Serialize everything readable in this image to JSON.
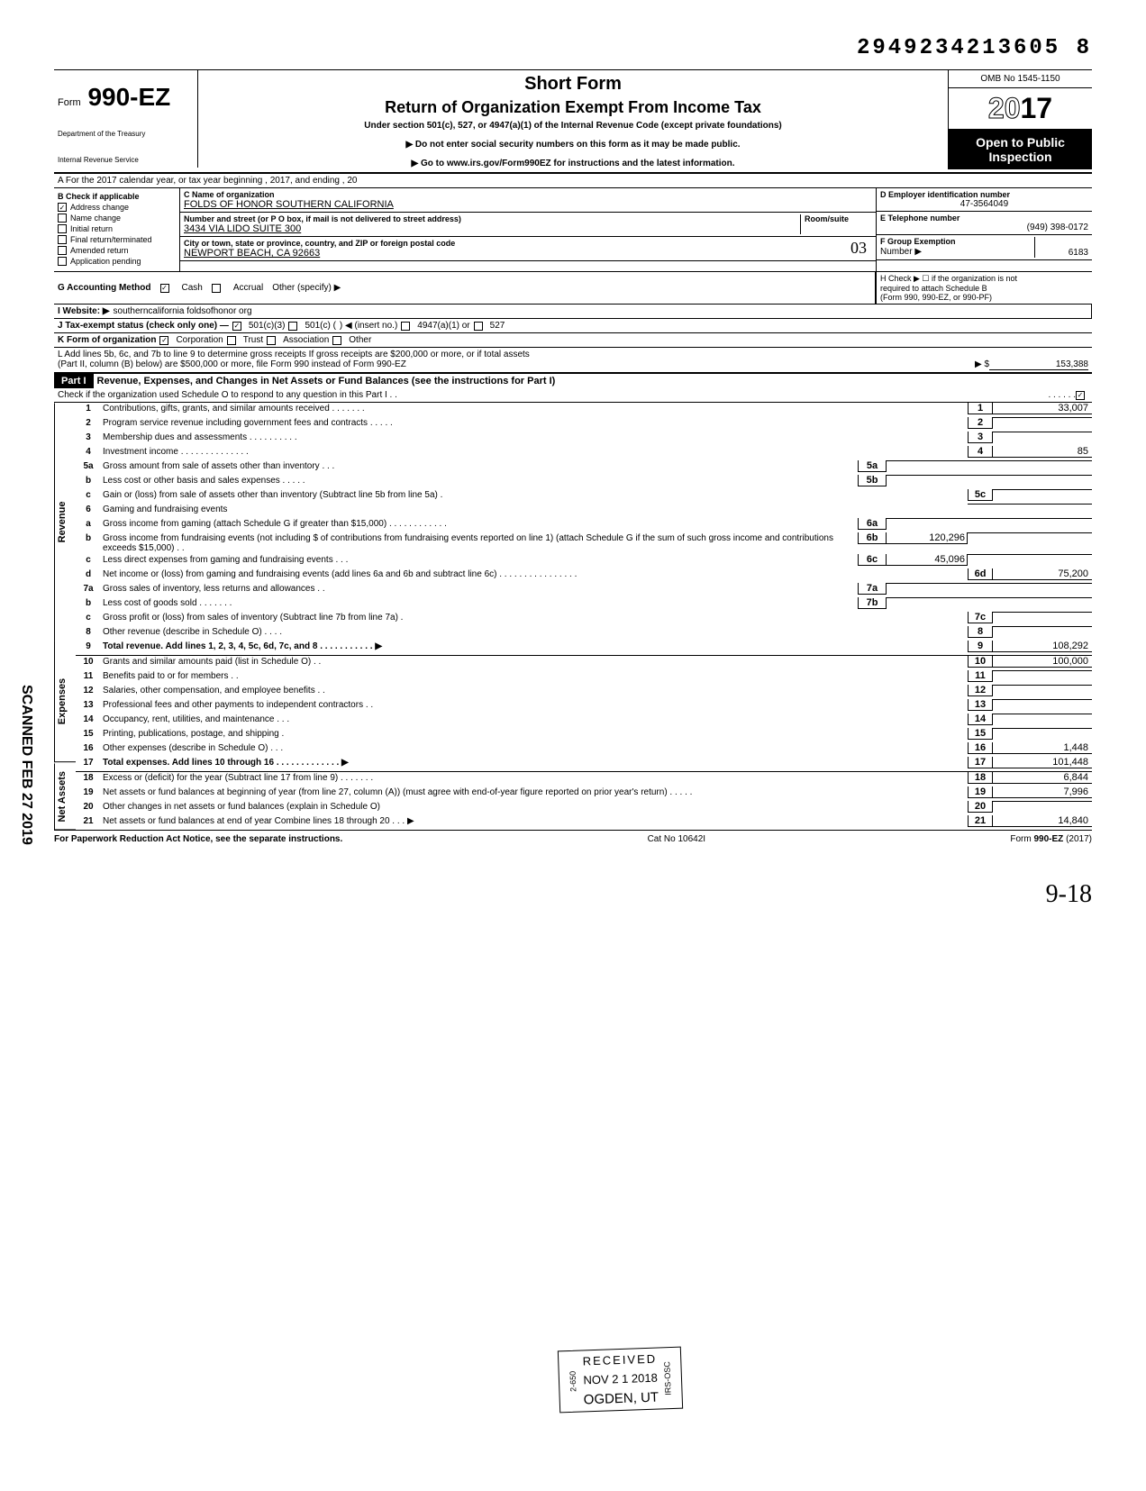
{
  "header": {
    "control_number": "2949234213605 8",
    "form_number": "990-EZ",
    "form_prefix": "Form",
    "short_form": "Short Form",
    "title": "Return of Organization Exempt From Income Tax",
    "subtitle": "Under section 501(c), 527, or 4947(a)(1) of the Internal Revenue Code (except private foundations)",
    "instr1": "▶ Do not enter social security numbers on this form as it may be made public.",
    "instr2": "▶ Go to www.irs.gov/Form990EZ for instructions and the latest information.",
    "dept1": "Department of the Treasury",
    "dept2": "Internal Revenue Service",
    "omb": "OMB No 1545-1150",
    "year": "2017",
    "inspection1": "Open to Public",
    "inspection2": "Inspection"
  },
  "rowA": "A  For the 2017 calendar year, or tax year beginning                                                              , 2017, and ending                                            , 20",
  "sectionB": {
    "label": "B  Check if applicable",
    "items": [
      "Address change",
      "Name change",
      "Initial return",
      "Final return/terminated",
      "Amended return",
      "Application pending"
    ],
    "checked": [
      true,
      false,
      false,
      false,
      false,
      false
    ]
  },
  "sectionC": {
    "name_label": "C  Name of organization",
    "name": "FOLDS OF HONOR SOUTHERN CALIFORNIA",
    "street_label": "Number and street (or P O  box, if mail is not delivered to street address)",
    "room_label": "Room/suite",
    "street": "3434 VIA LIDO SUITE 300",
    "city_label": "City or town, state or province, country, and ZIP or foreign postal code",
    "city": "NEWPORT BEACH, CA 92663"
  },
  "sectionD": {
    "label": "D Employer identification number",
    "value": "47-3564049"
  },
  "sectionE": {
    "label": "E Telephone number",
    "value": "(949) 398-0172"
  },
  "sectionF": {
    "label": "F Group Exemption",
    "label2": "Number ▶",
    "value": "6183"
  },
  "handwrite_03": "03",
  "rowG": {
    "label": "G  Accounting Method",
    "cash": "Cash",
    "accrual": "Accrual",
    "other": "Other (specify) ▶",
    "cash_checked": true
  },
  "rowH": {
    "text": "H  Check ▶  ☐  if the organization is not",
    "text2": "required to attach Schedule B",
    "text3": "(Form 990, 990-EZ, or 990-PF)"
  },
  "rowI": {
    "label": "I   Website: ▶",
    "value": "southerncalifornia foldsofhonor org"
  },
  "rowJ": {
    "label": "J  Tax-exempt status (check only one) —",
    "opt1": "501(c)(3)",
    "opt2": "501(c) (",
    "opt3": ") ◀ (insert no.)",
    "opt4": "4947(a)(1) or",
    "opt5": "527",
    "checked_501c3": true
  },
  "rowK": {
    "label": "K  Form of organization",
    "corp": "Corporation",
    "trust": "Trust",
    "assoc": "Association",
    "other": "Other",
    "corp_checked": true
  },
  "rowL": {
    "text1": "L  Add lines 5b, 6c, and 7b to line 9 to determine gross receipts  If gross receipts are $200,000 or more, or if total assets",
    "text2": "(Part II, column (B) below) are $500,000 or more, file Form 990 instead of Form 990-EZ",
    "arrow": "▶  $",
    "value": "153,388"
  },
  "part1": {
    "label": "Part I",
    "title": "Revenue, Expenses, and Changes in Net Assets or Fund Balances (see the instructions for Part I)",
    "checkline": "Check if the organization used Schedule O to respond to any question in this Part I  .   .",
    "checked": true
  },
  "sections": {
    "revenue": "Revenue",
    "expenses": "Expenses",
    "netassets": "Net Assets"
  },
  "scanned": "SCANNED FEB 27 2019",
  "lines": [
    {
      "n": "1",
      "d": "Contributions, gifts, grants, and similar amounts received      .      .      .      .      .      .      .",
      "rn": "1",
      "rv": "33,007"
    },
    {
      "n": "2",
      "d": "Program service revenue including government fees and contracts     .      .      .      .      .",
      "rn": "2",
      "rv": ""
    },
    {
      "n": "3",
      "d": "Membership dues and assessments        .      .      .      .      .      .      .      .      .      .",
      "rn": "3",
      "rv": ""
    },
    {
      "n": "4",
      "d": "Investment income     .       .      .      .      .      .      .      .      .      .      .      .      .      .",
      "rn": "4",
      "rv": "85"
    },
    {
      "n": "5a",
      "d": "Gross amount from sale of assets other than inventory     .      .      .",
      "mn": "5a",
      "mv": "",
      "shaded_r": true
    },
    {
      "n": "b",
      "d": "Less  cost or other basis and sales expenses .      .      .      .      .",
      "mn": "5b",
      "mv": "",
      "shaded_r": true
    },
    {
      "n": "c",
      "d": "Gain or (loss) from sale of assets other than inventory (Subtract line 5b from line 5a)   .",
      "rn": "5c",
      "rv": ""
    },
    {
      "n": "6",
      "d": "Gaming and fundraising events",
      "shaded_r": true
    },
    {
      "n": "a",
      "d": "Gross  income  from  gaming  (attach  Schedule  G  if  greater  than $15,000)            .      .      .      .      .      .      .      .      .      .      .      .",
      "mn": "6a",
      "mv": "",
      "shaded_r": true
    },
    {
      "n": "b",
      "d": "Gross income from fundraising events (not including  $                         of contributions from fundraising events reported on line 1) (attach Schedule G if the sum of such gross income and contributions exceeds $15,000) .   .",
      "mn": "6b",
      "mv": "120,296",
      "shaded_r": true
    },
    {
      "n": "c",
      "d": "Less  direct expenses from gaming and fundraising events    .    .    .",
      "mn": "6c",
      "mv": "45,096",
      "shaded_r": true
    },
    {
      "n": "d",
      "d": "Net income or (loss) from gaming and fundraising events (add lines 6a and 6b and subtract line 6c)           .       .      .      .      .      .      .      .      .      .      .      .      .      .      .      .",
      "rn": "6d",
      "rv": "75,200"
    },
    {
      "n": "7a",
      "d": "Gross sales of inventory, less returns and allowances   .    .",
      "mn": "7a",
      "mv": "",
      "shaded_r": true
    },
    {
      "n": "b",
      "d": "Less  cost of goods sold      .        .      .      .      .      .      .",
      "mn": "7b",
      "mv": "",
      "shaded_r": true
    },
    {
      "n": "c",
      "d": "Gross profit or (loss) from sales of inventory (Subtract line 7b from line 7a)   .",
      "rn": "7c",
      "rv": ""
    },
    {
      "n": "8",
      "d": "Other revenue (describe in Schedule O) .     .     .     .",
      "rn": "8",
      "rv": ""
    },
    {
      "n": "9",
      "d": "Total revenue. Add lines 1, 2, 3, 4, 5c, 6d, 7c, and 8    .    .    .    .    .    .    .    .    .    .    .   ▶",
      "rn": "9",
      "rv": "108,292",
      "bold": true
    }
  ],
  "expenses": [
    {
      "n": "10",
      "d": "Grants and similar amounts paid (list in Schedule O)    .    .",
      "rn": "10",
      "rv": "100,000"
    },
    {
      "n": "11",
      "d": "Benefits paid to or for members    .    .",
      "rn": "11",
      "rv": ""
    },
    {
      "n": "12",
      "d": "Salaries, other compensation, and employee benefits   .    .",
      "rn": "12",
      "rv": ""
    },
    {
      "n": "13",
      "d": "Professional fees and other payments to independent contractors   .    .",
      "rn": "13",
      "rv": ""
    },
    {
      "n": "14",
      "d": "Occupancy, rent, utilities, and maintenance    .    .    .",
      "rn": "14",
      "rv": ""
    },
    {
      "n": "15",
      "d": "Printing, publications, postage, and shipping  .",
      "rn": "15",
      "rv": ""
    },
    {
      "n": "16",
      "d": "Other expenses (describe in Schedule O)  .    .    .",
      "rn": "16",
      "rv": "1,448"
    },
    {
      "n": "17",
      "d": "Total expenses. Add lines 10 through 16     .    .    .    .    .    .    .    .    .    .    .    .    .   ▶",
      "rn": "17",
      "rv": "101,448",
      "bold": true
    }
  ],
  "netassets": [
    {
      "n": "18",
      "d": "Excess or (deficit) for the year (Subtract line 17 from line 9)    .    .    .    .    .    .    .",
      "rn": "18",
      "rv": "6,844"
    },
    {
      "n": "19",
      "d": "Net assets or fund balances at beginning of year (from line 27, column (A)) (must agree with end-of-year figure reported on prior year's return)     .    .       .     .    .",
      "rn": "19",
      "rv": "7,996",
      "shaded_first": true
    },
    {
      "n": "20",
      "d": "Other changes in net assets or fund balances (explain in Schedule O)",
      "rn": "20",
      "rv": ""
    },
    {
      "n": "21",
      "d": "Net assets or fund balances at end of year  Combine lines 18 through 20     .     .     .         ▶",
      "rn": "21",
      "rv": "14,840"
    }
  ],
  "footer": {
    "left": "For Paperwork Reduction Act Notice, see the separate instructions.",
    "mid": "Cat No  10642I",
    "right": "Form 990-EZ  (2017)"
  },
  "received_stamp": {
    "l1": "RECEIVED",
    "l2": "NOV 2 1 2018",
    "l3": "OGDEN, UT",
    "side1": "2-650",
    "side2": "IRS-OSC"
  },
  "handwrite_bottom": "9-18"
}
